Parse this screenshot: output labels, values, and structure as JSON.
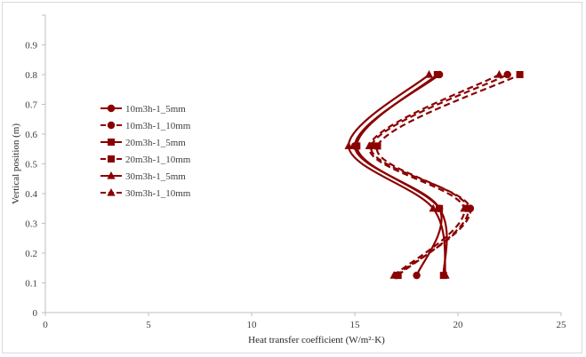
{
  "chart_data": {
    "type": "line",
    "title": "",
    "xlabel": "Heat transfer coefficient (W/m²·K)",
    "ylabel": "Vertical position (m)",
    "xlim": [
      0,
      25
    ],
    "ylim": [
      0,
      1.0
    ],
    "x_ticks": [
      "0",
      "5",
      "10",
      "15",
      "20",
      "25"
    ],
    "y_ticks": [
      "0",
      "0.1",
      "0.2",
      "0.3",
      "0.4",
      "0.5",
      "0.6",
      "0.7",
      "0.8",
      "0.9"
    ],
    "y_positions": [
      0.125,
      0.35,
      0.56,
      0.8
    ],
    "grid": false,
    "legend_position": "left",
    "line_color": "#8b0000",
    "series": [
      {
        "name": "10m3h-1_5mm",
        "marker": "circle",
        "dash": "solid",
        "x": [
          18.0,
          19.1,
          15.0,
          19.1
        ]
      },
      {
        "name": "10m3h-1_10mm",
        "marker": "circle",
        "dash": "dashed",
        "x": [
          17.0,
          20.6,
          15.8,
          22.4
        ]
      },
      {
        "name": "20m3h-1_5mm",
        "marker": "square",
        "dash": "solid",
        "x": [
          19.3,
          19.1,
          15.1,
          19.0
        ]
      },
      {
        "name": "20m3h-1_10mm",
        "marker": "square",
        "dash": "dashed",
        "x": [
          17.1,
          20.5,
          16.1,
          23.0
        ]
      },
      {
        "name": "30m3h-1_5mm",
        "marker": "triangle",
        "dash": "solid",
        "x": [
          19.4,
          18.8,
          14.7,
          18.6
        ]
      },
      {
        "name": "30m3h-1_10mm",
        "marker": "triangle",
        "dash": "dashed",
        "x": [
          16.9,
          20.3,
          15.7,
          22.0
        ]
      }
    ]
  }
}
